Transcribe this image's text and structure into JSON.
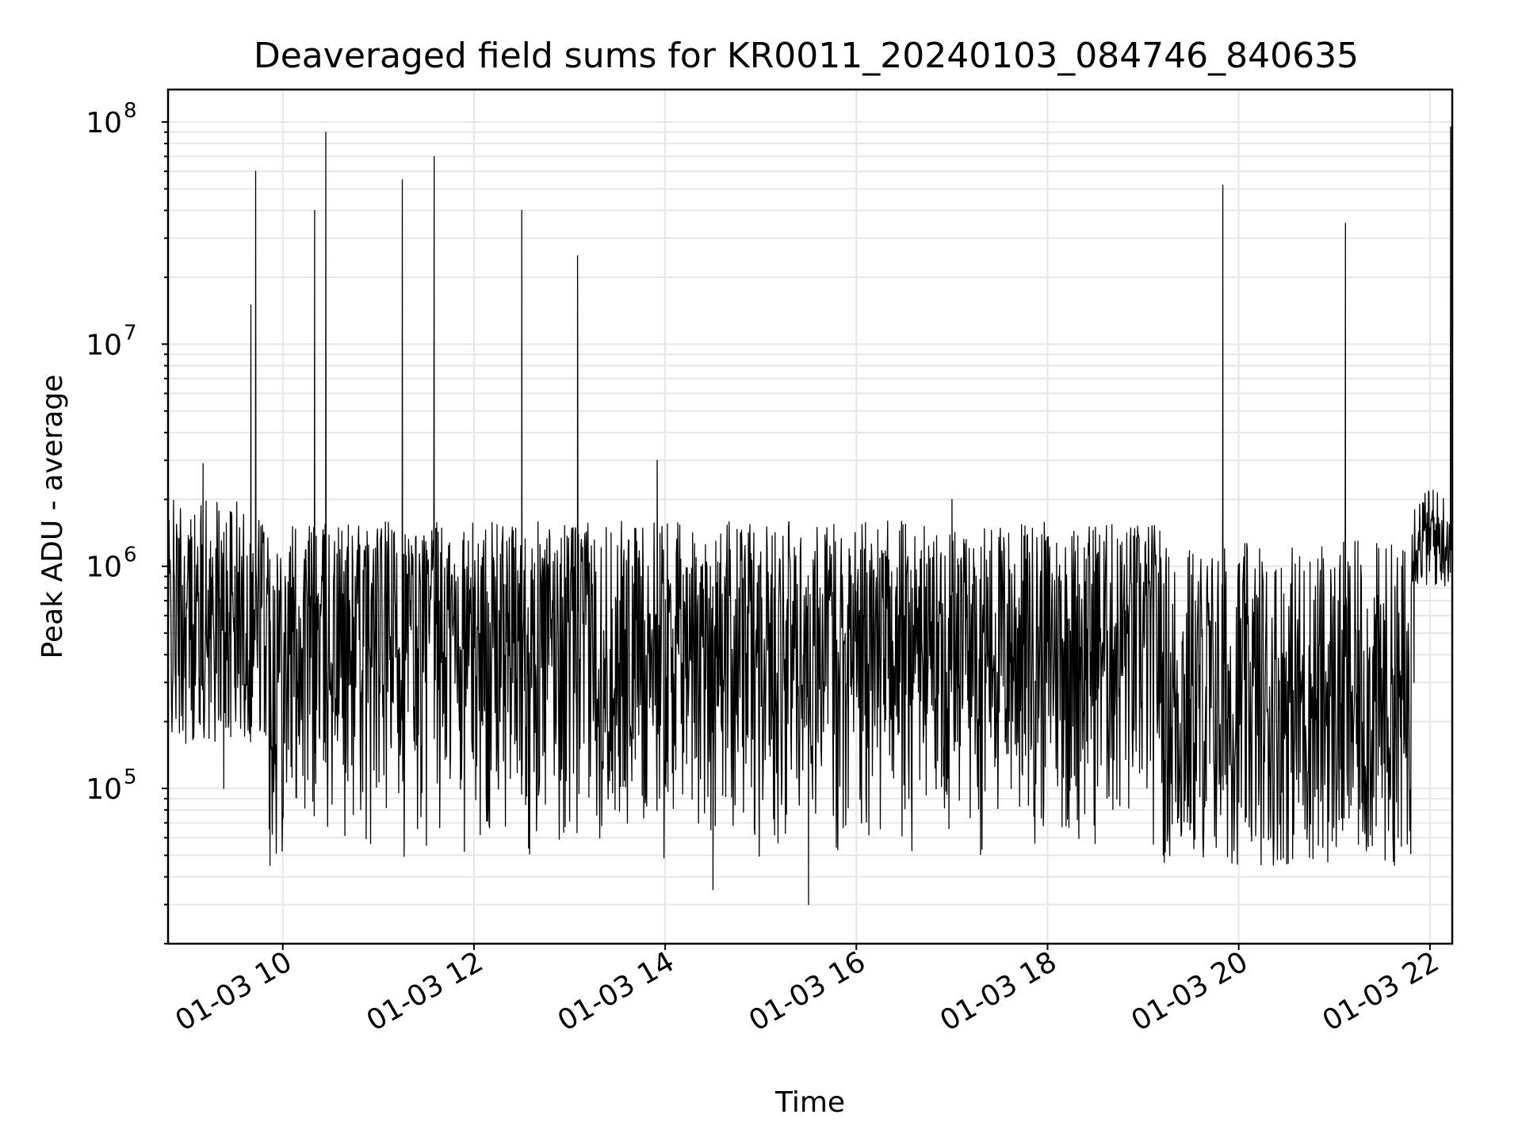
{
  "chart_data": {
    "type": "line",
    "title": "Deaveraged field sums for KR0011_20240103_084746_840635",
    "xlabel": "Time",
    "ylabel": "Peak ADU - average",
    "yscale": "log",
    "ylim": [
      20000,
      140000000
    ],
    "xlim": [
      "01-03 08:48",
      "01-03 22:14"
    ],
    "grid": true,
    "x_ticks": [
      "01-03 10",
      "01-03 12",
      "01-03 14",
      "01-03 16",
      "01-03 18",
      "01-03 20",
      "01-03 22"
    ],
    "y_ticks": [
      {
        "base": "10",
        "exp": "5",
        "value": 100000
      },
      {
        "base": "10",
        "exp": "6",
        "value": 1000000
      },
      {
        "base": "10",
        "exp": "7",
        "value": 10000000
      },
      {
        "base": "10",
        "exp": "8",
        "value": 100000000
      }
    ],
    "series": [
      {
        "color": "#000000",
        "x": [
          "01-03 08:48",
          "01-03 08:58",
          "01-03 09:10",
          "01-03 09:12",
          "01-03 09:18",
          "01-03 09:23",
          "01-03 09:30",
          "01-03 09:40",
          "01-03 09:43",
          "01-03 09:52",
          "01-03 10:20",
          "01-03 10:27",
          "01-03 11:15",
          "01-03 11:35",
          "01-03 12:30",
          "01-03 13:05",
          "01-03 13:55",
          "01-03 14:30",
          "01-03 15:30",
          "01-03 17:00",
          "01-03 18:30",
          "01-03 19:50",
          "01-03 20:20",
          "01-03 21:07",
          "01-03 21:40",
          "01-03 21:50",
          "01-03 22:02",
          "01-03 22:13"
        ],
        "y": [
          400000,
          700000,
          2900000,
          600000,
          1200000,
          100000,
          1000000,
          15000000,
          60000000,
          45000,
          40000000,
          90000000,
          55000000,
          70000000,
          40000000,
          25000000,
          3000000,
          35000,
          30000,
          2000000,
          1500000,
          52000000,
          60000,
          35000000,
          60000,
          300000,
          2200000,
          95000000
        ]
      }
    ]
  }
}
